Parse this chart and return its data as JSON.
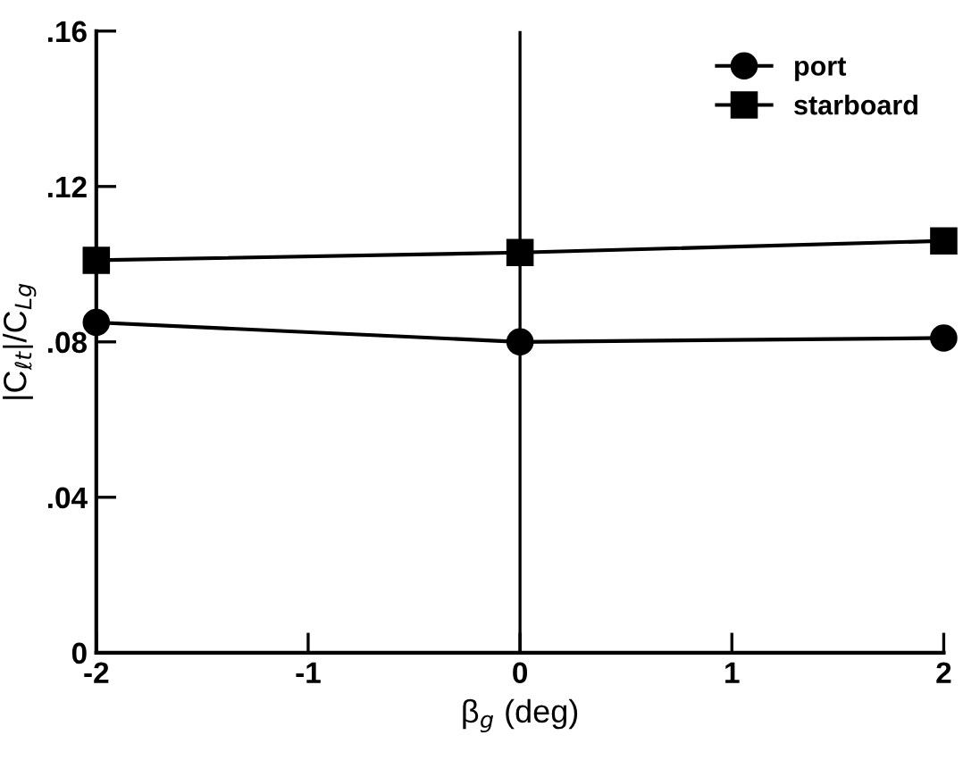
{
  "chart_data": {
    "type": "line",
    "xlabel": "β$_{g}$ (deg)",
    "ylabel": "|C$_{ℓt}$|/C$_{Lg}$",
    "x": [
      -2,
      0,
      2
    ],
    "series": [
      {
        "name": "port",
        "color": "#000000",
        "marker": "circle",
        "values": [
          0.085,
          0.08,
          0.081
        ]
      },
      {
        "name": "starboard",
        "color": "#000000",
        "marker": "square",
        "values": [
          0.101,
          0.103,
          0.106
        ]
      }
    ],
    "xlim": [
      -2,
      2
    ],
    "xticks": [
      -2,
      -1,
      0,
      1,
      2
    ],
    "ylim": [
      0,
      0.16
    ],
    "yticks": [
      {
        "value": 0,
        "label": "0"
      },
      {
        "value": 0.04,
        "label": ".04"
      },
      {
        "value": 0.08,
        "label": ".08"
      },
      {
        "value": 0.12,
        "label": ".12"
      },
      {
        "value": 0.16,
        "label": ".16"
      }
    ],
    "ref_lines": [
      {
        "axis": "x",
        "value": 0,
        "color": "#000000"
      }
    ],
    "legend": "top right",
    "grid": false,
    "line_style": "solid"
  }
}
